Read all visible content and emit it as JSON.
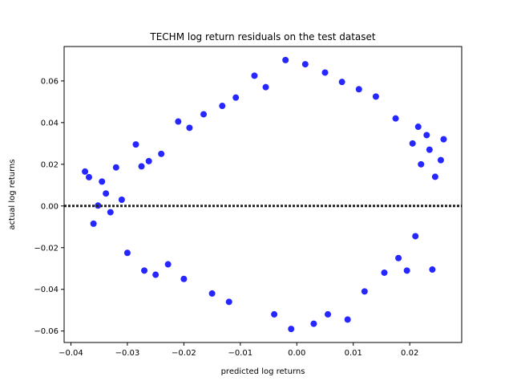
{
  "chart_data": {
    "type": "scatter",
    "title": "TECHM log return residuals on the test dataset",
    "xlabel": "predicted log returns",
    "ylabel": "actual log returns",
    "xlim": [
      -0.0412,
      0.0292
    ],
    "ylim": [
      -0.0655,
      0.0765
    ],
    "xticks": [
      -0.04,
      -0.03,
      -0.02,
      -0.01,
      0.0,
      0.01,
      0.02
    ],
    "xtick_labels": [
      "−0.04",
      "−0.03",
      "−0.02",
      "−0.01",
      "0.00",
      "0.01",
      "0.02"
    ],
    "yticks": [
      -0.06,
      -0.04,
      -0.02,
      0.0,
      0.02,
      0.04,
      0.06
    ],
    "ytick_labels": [
      "−0.06",
      "−0.04",
      "−0.02",
      "0.00",
      "0.02",
      "0.04",
      "0.06"
    ],
    "reference_line": {
      "y": 0.0,
      "style": "dotted",
      "color": "#222222"
    },
    "series": [
      {
        "color": "#0000ff",
        "points": [
          [
            -0.0375,
            0.0165
          ],
          [
            -0.0368,
            0.0138
          ],
          [
            -0.036,
            -0.0085
          ],
          [
            -0.0352,
            0.0002
          ],
          [
            -0.0345,
            0.0117
          ],
          [
            -0.0338,
            0.006
          ],
          [
            -0.033,
            -0.003
          ],
          [
            -0.032,
            0.0185
          ],
          [
            -0.031,
            0.003
          ],
          [
            -0.03,
            -0.0225
          ],
          [
            -0.0285,
            0.0295
          ],
          [
            -0.0275,
            0.019
          ],
          [
            -0.027,
            -0.031
          ],
          [
            -0.0262,
            0.0215
          ],
          [
            -0.025,
            -0.033
          ],
          [
            -0.024,
            0.025
          ],
          [
            -0.0228,
            -0.028
          ],
          [
            -0.021,
            0.0405
          ],
          [
            -0.02,
            -0.035
          ],
          [
            -0.019,
            0.0375
          ],
          [
            -0.0165,
            0.044
          ],
          [
            -0.015,
            -0.042
          ],
          [
            -0.0132,
            0.048
          ],
          [
            -0.012,
            -0.046
          ],
          [
            -0.0108,
            0.052
          ],
          [
            -0.0055,
            0.057
          ],
          [
            -0.0075,
            0.0625
          ],
          [
            -0.004,
            -0.052
          ],
          [
            -0.002,
            0.07
          ],
          [
            -0.001,
            -0.059
          ],
          [
            0.0015,
            0.068
          ],
          [
            0.003,
            -0.0565
          ],
          [
            0.005,
            0.064
          ],
          [
            0.0055,
            -0.052
          ],
          [
            0.008,
            0.0595
          ],
          [
            0.009,
            -0.0545
          ],
          [
            0.011,
            0.056
          ],
          [
            0.012,
            -0.041
          ],
          [
            0.014,
            0.0525
          ],
          [
            0.0155,
            -0.032
          ],
          [
            0.0175,
            0.042
          ],
          [
            0.018,
            -0.025
          ],
          [
            0.0195,
            -0.031
          ],
          [
            0.0205,
            0.03
          ],
          [
            0.021,
            -0.0145
          ],
          [
            0.022,
            0.02
          ],
          [
            0.023,
            0.034
          ],
          [
            0.0235,
            0.027
          ],
          [
            0.024,
            -0.0305
          ],
          [
            0.0245,
            0.014
          ],
          [
            0.0255,
            0.022
          ],
          [
            0.026,
            0.032
          ],
          [
            0.0215,
            0.038
          ]
        ]
      }
    ]
  }
}
